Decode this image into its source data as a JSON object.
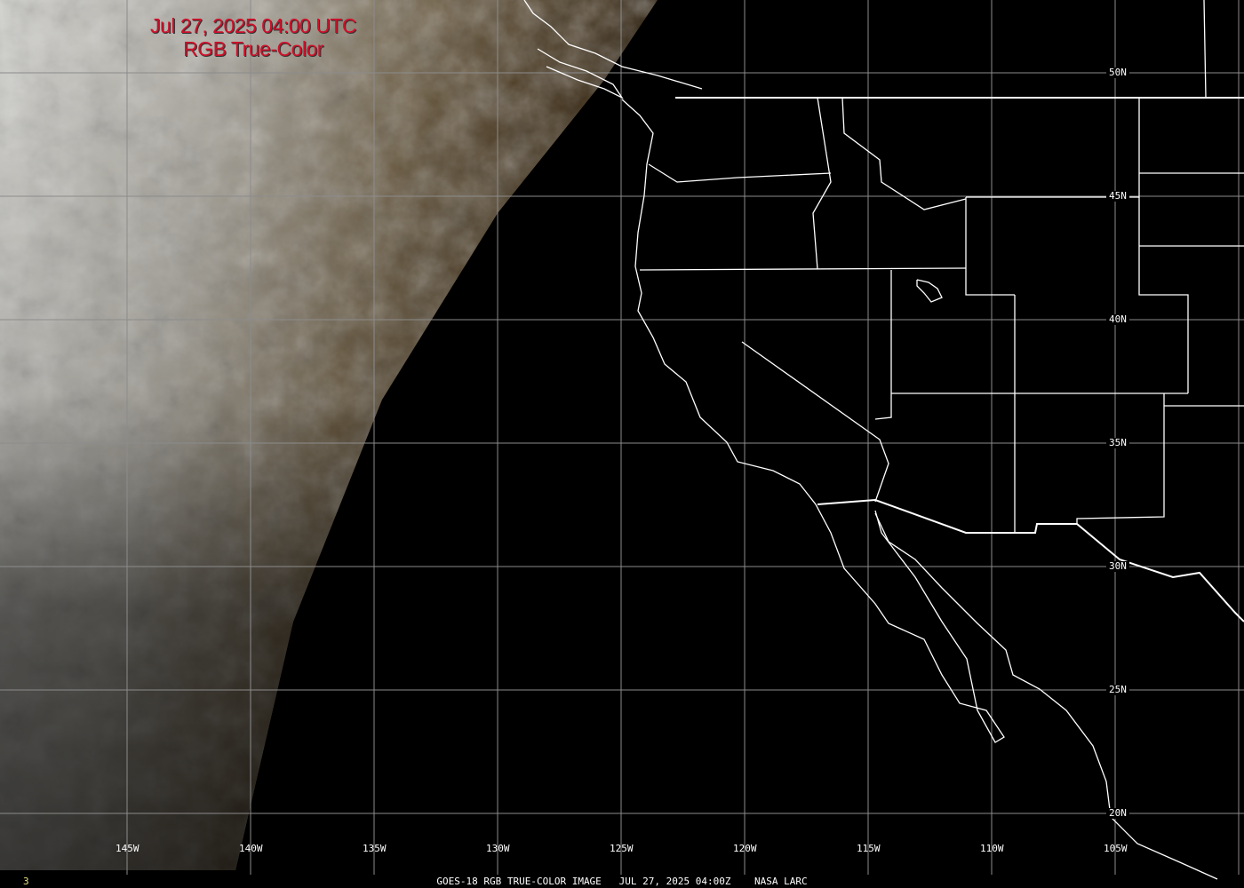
{
  "title": {
    "line1": "Jul 27, 2025 04:00 UTC",
    "line2": "RGB True-Color",
    "color": "#d0102a"
  },
  "caption": {
    "text": "GOES-18 RGB TRUE-COLOR IMAGE   JUL 27, 2025 04:00Z    NASA LARC",
    "frame_number": "3"
  },
  "grid": {
    "longitudes": [
      "145W",
      "140W",
      "135W",
      "130W",
      "125W",
      "120W",
      "115W",
      "110W",
      "105W"
    ],
    "latitudes": [
      "50N",
      "45N",
      "40N",
      "35N",
      "30N",
      "25N",
      "20N"
    ],
    "line_color": "#8c8c8c"
  },
  "colors": {
    "background": "#000000",
    "borders": "#ffffff",
    "clouds": "#c8c8c4",
    "land_dusk": "#5a4020"
  }
}
